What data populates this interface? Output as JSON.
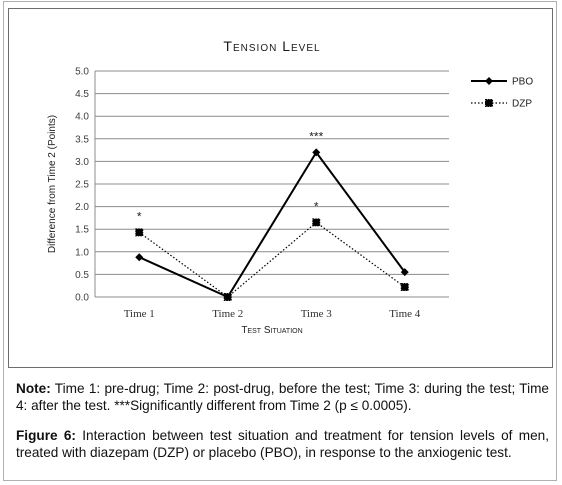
{
  "chart_data": {
    "type": "line",
    "title": "Tension Level",
    "xlabel": "Test Situation",
    "ylabel": "Difference from Time 2 (Points)",
    "categories": [
      "Time 1",
      "Time 2",
      "Time 3",
      "Time 4"
    ],
    "ylim": [
      0,
      5
    ],
    "yticks": [
      "0.0",
      "0.5",
      "1.0",
      "1.5",
      "2.0",
      "2.5",
      "3.0",
      "3.5",
      "4.0",
      "4.5",
      "5.0"
    ],
    "grid": true,
    "legend_position": "right",
    "series": [
      {
        "name": "PBO",
        "values": [
          0.88,
          0.0,
          3.2,
          0.55
        ],
        "color": "#000000",
        "style": "solid",
        "marker": "diamond"
      },
      {
        "name": "DZP",
        "values": [
          1.43,
          0.0,
          1.65,
          0.22
        ],
        "color": "#000000",
        "style": "dotted",
        "marker": "square"
      }
    ],
    "annotations": [
      {
        "text": "*",
        "category": "Time 1",
        "y": 1.43
      },
      {
        "text": "***",
        "category": "Time 3",
        "y": 3.2
      },
      {
        "text": "*",
        "category": "Time 3",
        "y": 1.65
      }
    ]
  },
  "note": {
    "label": "Note:",
    "text": " Time 1: pre-drug; Time 2: post-drug, before the test; Time 3: during the test; Time 4: after the test. ***Significantly different from Time 2 (p ≤ 0.0005)."
  },
  "figure": {
    "label": "Figure 6:",
    "text": " Interaction between test situation and treatment for tension levels of men, treated with diazepam (DZP) or placebo (PBO), in response to the anxiogenic test."
  }
}
